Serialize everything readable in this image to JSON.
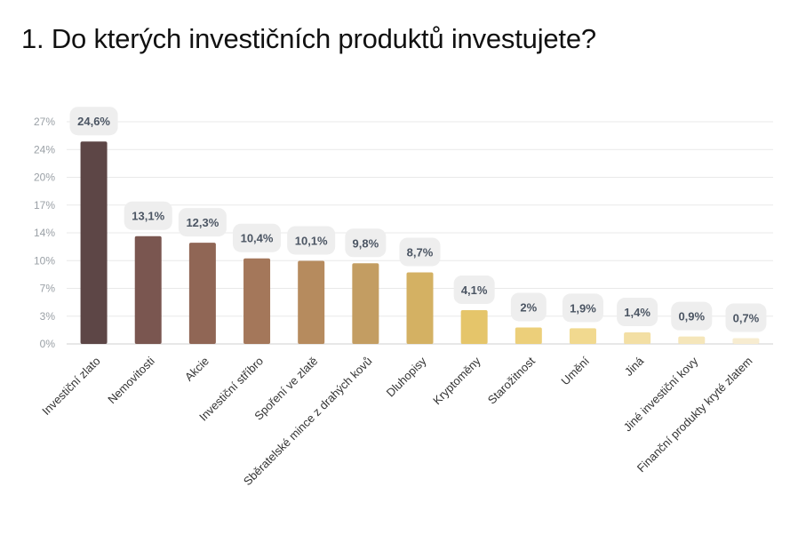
{
  "title": "1. Do kterých investičních produktů investujete?",
  "chart_data": {
    "type": "bar",
    "title": "1. Do kterých investičních produktů investujete?",
    "xlabel": "",
    "ylabel": "",
    "ylim": [
      0,
      27
    ],
    "yticks": [
      "0%",
      "3%",
      "7%",
      "10%",
      "14%",
      "17%",
      "20%",
      "24%",
      "27%"
    ],
    "grid": true,
    "categories": [
      "Investiční zlato",
      "Nemovitosti",
      "Akcie",
      "Investiční stříbro",
      "Spoření ve zlatě",
      "Sběratelské mince z drahých kovů",
      "Dluhopisy",
      "Kryptoměny",
      "Starožitnost",
      "Umění",
      "Jiná",
      "Jiné investiční kovy",
      "Finanční produkty kryté zlatem"
    ],
    "values": [
      24.6,
      13.1,
      12.3,
      10.4,
      10.1,
      9.8,
      8.7,
      4.1,
      2,
      1.9,
      1.4,
      0.9,
      0.7
    ],
    "data_labels": [
      "24,6%",
      "13,1%",
      "12,3%",
      "10,4%",
      "10,1%",
      "9,8%",
      "8,7%",
      "4,1%",
      "2%",
      "1,9%",
      "1,4%",
      "0,9%",
      "0,7%"
    ],
    "colors": [
      "#5d4646",
      "#7a5650",
      "#906655",
      "#a4775a",
      "#b68b5e",
      "#c39d62",
      "#d4b163",
      "#e5c56a",
      "#eccf7a",
      "#f1d98f",
      "#f3dfa4",
      "#f5e6ba",
      "#f7ecd0"
    ],
    "label_bg": "#eeeeee"
  }
}
